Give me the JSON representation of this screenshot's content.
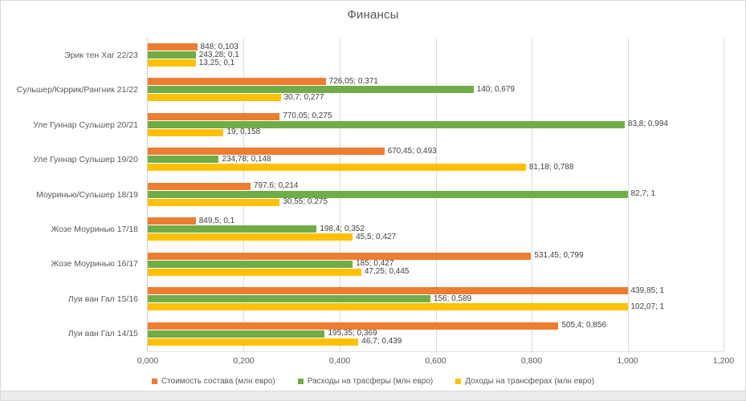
{
  "chart_data": {
    "type": "bar",
    "orientation": "horizontal",
    "title": "Финансы",
    "categories": [
      "Эрик тен Хаг 22/23",
      "Сульшер/Кэррик/Рангник 21/22",
      "Уле Гуннар Сульшер 20/21",
      "Уле Гуннар Сульшер 19/20",
      "Моуринью/Сульшер 18/19",
      "Жозе Моуринью 17/18",
      "Жозе Моуринью 16/17",
      "Луи ван Гал 15/16",
      "Луи ван Гал 14/15"
    ],
    "series": [
      {
        "name": "Стоимость состава (млн евро)",
        "color": "#ED7D31",
        "values": [
          0.103,
          0.371,
          0.275,
          0.493,
          0.214,
          0.1,
          0.799,
          1,
          0.856
        ],
        "labels": [
          "848; 0,103",
          "726,05; 0,371",
          "770,05; 0,275",
          "670,45; 0,493",
          "797,6; 0,214",
          "849,5; 0,1",
          "531,45; 0,799",
          "439,85; 1",
          "505,4; 0,856"
        ]
      },
      {
        "name": "Расходы на трасферы (млн евро)",
        "color": "#70AD47",
        "values": [
          0.1,
          0.679,
          0.994,
          0.148,
          1,
          0.352,
          0.427,
          0.589,
          0.369
        ],
        "labels": [
          "243,28; 0,1",
          "140; 0,679",
          "83,8; 0,994",
          "234,78; 0,148",
          "82,7; 1",
          "198,4; 0,352",
          "185; 0,427",
          "156; 0,589",
          "195,35; 0,369"
        ]
      },
      {
        "name": "Доходы на трансферах (млн евро)",
        "color": "#FFC000",
        "values": [
          0.1,
          0.277,
          0.158,
          0.788,
          0.275,
          0.427,
          0.445,
          1,
          0.439
        ],
        "labels": [
          "13,25; 0,1",
          "30,7; 0,277",
          "19; 0,158",
          "81,18; 0,788",
          "30,55; 0,275",
          "45,5; 0,427",
          "47,25; 0,445",
          "102,07; 1",
          "46,7; 0,439"
        ]
      }
    ],
    "xlim": [
      0,
      1.2
    ],
    "x_ticks": [
      "0,000",
      "0,200",
      "0,400",
      "0,600",
      "0,800",
      "1,000",
      "1,200"
    ],
    "grid": true,
    "legend_position": "bottom",
    "text_color": "#595959",
    "data_label_color": "#404040",
    "gridline_color": "#D9D9D9"
  }
}
